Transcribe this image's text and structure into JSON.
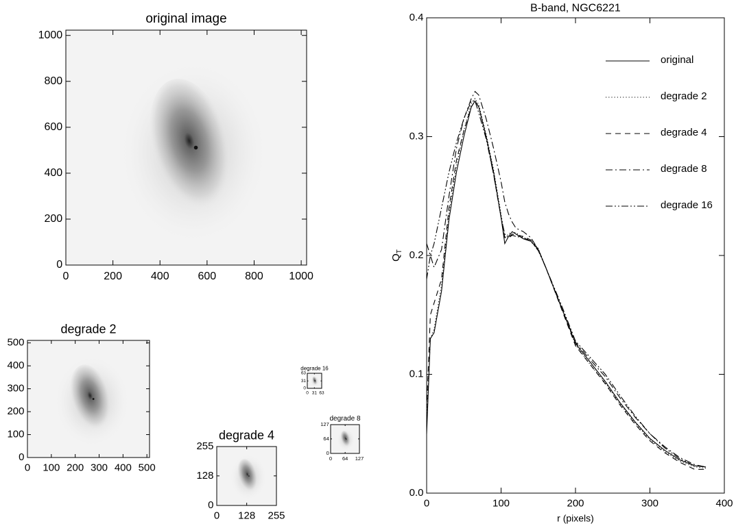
{
  "chart_data": [
    {
      "type": "image",
      "title": "original image",
      "xlim": [
        0,
        1023
      ],
      "ylim": [
        0,
        1023
      ],
      "xticks": [
        0,
        200,
        400,
        600,
        800,
        1000
      ],
      "yticks": [
        0,
        200,
        400,
        600,
        800,
        1000
      ]
    },
    {
      "type": "image",
      "title": "degrade 2",
      "xlim": [
        0,
        511
      ],
      "ylim": [
        0,
        511
      ],
      "xticks": [
        0,
        100,
        200,
        300,
        400,
        500
      ],
      "yticks": [
        0,
        100,
        200,
        300,
        400,
        500
      ]
    },
    {
      "type": "image",
      "title": "degrade 4",
      "xlim": [
        0,
        255
      ],
      "ylim": [
        0,
        255
      ],
      "xticks": [
        0,
        128,
        255
      ],
      "yticks": [
        0,
        128,
        255
      ]
    },
    {
      "type": "image",
      "title": "degrade 8",
      "xlim": [
        0,
        127
      ],
      "ylim": [
        0,
        127
      ],
      "xticks": [
        0,
        64,
        127
      ],
      "yticks": [
        0,
        64,
        127
      ]
    },
    {
      "type": "image",
      "title": "degrade 16",
      "xlim": [
        0,
        63
      ],
      "ylim": [
        0,
        63
      ],
      "xticks": [
        0,
        31,
        63
      ],
      "yticks": [
        0,
        31,
        63
      ]
    },
    {
      "type": "line",
      "title": "B-band, NGC6221",
      "xlabel": "r (pixels)",
      "ylabel": "Q",
      "ylabel_sub": "T",
      "xlim": [
        0,
        400
      ],
      "ylim": [
        0,
        0.4
      ],
      "xticks": [
        0,
        100,
        200,
        300,
        400
      ],
      "yticks": [
        {
          "value": 0,
          "label": "0.0"
        },
        0.1,
        0.2,
        0.3,
        0.4
      ],
      "legend": "upper right",
      "x": [
        0,
        5,
        10,
        20,
        30,
        40,
        50,
        60,
        65,
        70,
        80,
        90,
        100,
        105,
        110,
        115,
        120,
        130,
        140,
        150,
        160,
        180,
        200,
        220,
        240,
        260,
        280,
        300,
        320,
        340,
        360,
        375
      ],
      "series": [
        {
          "name": "original",
          "color": "#000000",
          "style": "solid",
          "values": [
            0.05,
            0.13,
            0.135,
            0.17,
            0.23,
            0.27,
            0.3,
            0.325,
            0.33,
            0.325,
            0.3,
            0.27,
            0.232,
            0.21,
            0.216,
            0.22,
            0.218,
            0.214,
            0.212,
            0.205,
            0.19,
            0.158,
            0.126,
            0.11,
            0.094,
            0.076,
            0.06,
            0.046,
            0.036,
            0.028,
            0.023,
            0.022
          ]
        },
        {
          "name": "degrade 2",
          "color": "#000000",
          "style": "dotted",
          "values": [
            0.06,
            0.13,
            0.138,
            0.175,
            0.235,
            0.275,
            0.305,
            0.328,
            0.332,
            0.327,
            0.302,
            0.272,
            0.235,
            0.215,
            0.218,
            0.22,
            0.219,
            0.215,
            0.213,
            0.206,
            0.19,
            0.158,
            0.125,
            0.108,
            0.093,
            0.075,
            0.059,
            0.045,
            0.035,
            0.027,
            0.022,
            0.021
          ]
        },
        {
          "name": "degrade 4",
          "color": "#000000",
          "style": "dashed",
          "values": [
            0.07,
            0.15,
            0.16,
            0.18,
            0.24,
            0.28,
            0.305,
            0.325,
            0.33,
            0.325,
            0.3,
            0.268,
            0.232,
            0.215,
            0.215,
            0.218,
            0.217,
            0.216,
            0.213,
            0.205,
            0.19,
            0.157,
            0.124,
            0.108,
            0.092,
            0.074,
            0.058,
            0.044,
            0.034,
            0.026,
            0.02,
            0.02
          ]
        },
        {
          "name": "degrade 8",
          "color": "#000000",
          "style": "dashdot",
          "values": [
            0.21,
            0.2,
            0.19,
            0.205,
            0.25,
            0.29,
            0.315,
            0.332,
            0.338,
            0.335,
            0.315,
            0.29,
            0.262,
            0.245,
            0.235,
            0.228,
            0.223,
            0.22,
            0.215,
            0.205,
            0.19,
            0.158,
            0.127,
            0.112,
            0.098,
            0.08,
            0.064,
            0.05,
            0.039,
            0.03,
            0.024,
            0.022
          ]
        },
        {
          "name": "degrade 16",
          "color": "#000000",
          "style": "dashdotdot",
          "values": [
            0.18,
            0.2,
            0.21,
            0.24,
            0.27,
            0.295,
            0.315,
            0.33,
            0.33,
            0.32,
            0.298,
            0.268,
            0.232,
            0.218,
            0.215,
            0.217,
            0.216,
            0.215,
            0.212,
            0.204,
            0.19,
            0.16,
            0.128,
            0.114,
            0.1,
            0.082,
            0.065,
            0.05,
            0.038,
            0.029,
            0.023,
            0.022
          ]
        }
      ]
    }
  ]
}
